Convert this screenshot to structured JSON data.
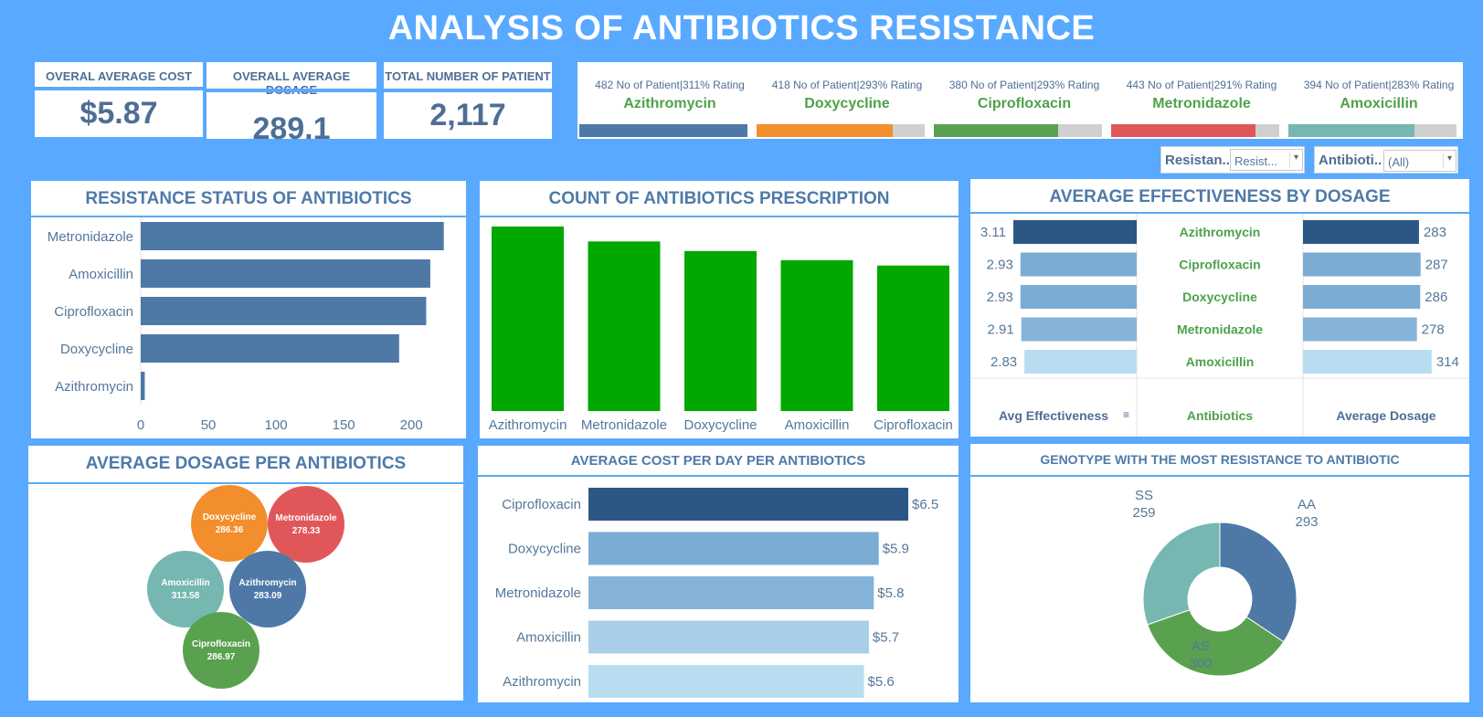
{
  "title": "ANALYSIS OF ANTIBIOTICS RESISTANCE",
  "kpis": [
    {
      "label": "OVERAL AVERAGE COST",
      "value": "$5.87"
    },
    {
      "label": "OVERALL AVERAGE DOSAGE",
      "value": "289.1"
    },
    {
      "label": "TOTAL NUMBER OF PATIENT",
      "value": "2,117"
    }
  ],
  "summary": [
    {
      "stat": "482 No of Patient|311% Rating",
      "name": "Azithromycin",
      "color": "#4e79a7",
      "fill": 1.0
    },
    {
      "stat": "418 No of Patient|293% Rating",
      "name": "Doxycycline",
      "color": "#f28e2b",
      "fill": 0.81
    },
    {
      "stat": "380 No of Patient|293% Rating",
      "name": "Ciprofloxacin",
      "color": "#59a14f",
      "fill": 0.74
    },
    {
      "stat": "443 No of Patient|291% Rating",
      "name": "Metronidazole",
      "color": "#e15759",
      "fill": 0.86
    },
    {
      "stat": "394 No of Patient|283% Rating",
      "name": "Amoxicillin",
      "color": "#76b7b2",
      "fill": 0.75
    }
  ],
  "filters": {
    "resistance": {
      "label": "Resistan..",
      "value": "Resist..."
    },
    "antibiotic": {
      "label": "Antibioti..",
      "value": "(All)"
    }
  },
  "chart_data": [
    {
      "type": "bar",
      "orientation": "horizontal",
      "title": "RESISTANCE STATUS OF ANTIBIOTICS",
      "categories": [
        "Metronidazole",
        "Amoxicillin",
        "Ciprofloxacin",
        "Doxycycline",
        "Azithromycin"
      ],
      "values": [
        224,
        214,
        211,
        191,
        3
      ],
      "xticks": [
        "0",
        "50",
        "100",
        "150",
        "200"
      ],
      "xlim": [
        0,
        235
      ],
      "color": "#4e79a7"
    },
    {
      "type": "bar",
      "title": "COUNT OF ANTIBIOTICS PRESCRIPTION",
      "categories": [
        "Azithromycin",
        "Metronidazole",
        "Doxycycline",
        "Amoxicillin",
        "Ciprofloxacin"
      ],
      "values": [
        482,
        443,
        418,
        394,
        380
      ],
      "ylim": [
        0,
        500
      ],
      "color": "#00a800"
    },
    {
      "type": "table",
      "title": "AVERAGE EFFECTIVENESS BY DOSAGE",
      "rows": [
        {
          "antibiotic": "Azithromycin",
          "effectiveness": "3.11",
          "dosage": "283",
          "color": "#2c5785"
        },
        {
          "antibiotic": "Ciprofloxacin",
          "effectiveness": "2.93",
          "dosage": "287",
          "color": "#7bacd4"
        },
        {
          "antibiotic": "Doxycycline",
          "effectiveness": "2.93",
          "dosage": "286",
          "color": "#7bacd4"
        },
        {
          "antibiotic": "Metronidazole",
          "effectiveness": "2.91",
          "dosage": "278",
          "color": "#86b3d8"
        },
        {
          "antibiotic": "Amoxicillin",
          "effectiveness": "2.83",
          "dosage": "314",
          "color": "#b8ddf1"
        }
      ],
      "columns": [
        "Avg Effectiveness",
        "Antibiotics",
        "Average Dosage"
      ],
      "eff_max": 3.11,
      "dosage_max": 330
    },
    {
      "type": "scatter",
      "title": "AVERAGE DOSAGE PER ANTIBIOTICS",
      "bubbles": [
        {
          "name": "Doxycycline",
          "value": "286.36",
          "color": "#f28e2b"
        },
        {
          "name": "Metronidazole",
          "value": "278.33",
          "color": "#e15759"
        },
        {
          "name": "Amoxicillin",
          "value": "313.58",
          "color": "#76b7b2"
        },
        {
          "name": "Azithromycin",
          "value": "283.09",
          "color": "#4e79a7"
        },
        {
          "name": "Ciprofloxacin",
          "value": "286.97",
          "color": "#59a14f"
        }
      ]
    },
    {
      "type": "bar",
      "orientation": "horizontal",
      "title": "AVERAGE COST PER DAY PER ANTIBIOTICS",
      "categories": [
        "Ciprofloxacin",
        "Doxycycline",
        "Metronidazole",
        "Amoxicillin",
        "Azithromycin"
      ],
      "values": [
        6.5,
        5.9,
        5.8,
        5.7,
        5.6
      ],
      "labels": [
        "$6.5",
        "$5.9",
        "$5.8",
        "$5.7",
        "$5.6"
      ],
      "colors": [
        "#2c5785",
        "#7bacd4",
        "#86b3d8",
        "#a9cfe8",
        "#b8ddf1"
      ],
      "xlim": [
        0,
        6.5
      ]
    },
    {
      "type": "pie",
      "title": "GENOTYPE WITH THE MOST RESISTANCE TO ANTIBIOTIC",
      "slices": [
        {
          "name": "AA",
          "value": 293,
          "color": "#4e79a7"
        },
        {
          "name": "AS",
          "value": 300,
          "color": "#59a14f"
        },
        {
          "name": "SS",
          "value": 259,
          "color": "#76b7b2"
        }
      ]
    }
  ]
}
